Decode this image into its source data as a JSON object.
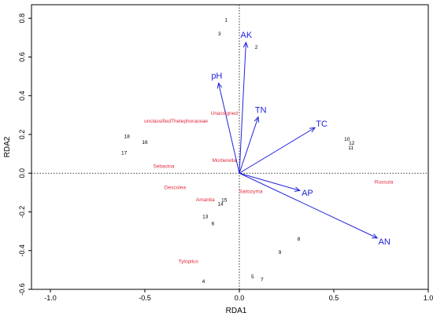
{
  "chart_data": {
    "type": "scatter",
    "title": "",
    "xlabel": "RDA1",
    "ylabel": "RDA2",
    "xlim": [
      -1.1,
      1.0
    ],
    "ylim": [
      -0.6,
      0.87
    ],
    "xticks": [
      -1.0,
      -0.5,
      0.0,
      0.5,
      1.0
    ],
    "yticks": [
      -0.6,
      -0.4,
      -0.2,
      0.0,
      0.2,
      0.4,
      0.6,
      0.8
    ],
    "xtick_labels": [
      "-1.0",
      "-0.5",
      "0.0",
      "0.5",
      "1.0"
    ],
    "ytick_labels": [
      "-0.6",
      "-0.4",
      "-0.2",
      "0.0",
      "0.2",
      "0.4",
      "0.6",
      "0.8"
    ],
    "grid": false,
    "zero_lines": "dotted",
    "colors": {
      "arrow": "#2222dd",
      "species": "#e0283c",
      "sites": "#000000"
    },
    "sites": [
      {
        "label": "1",
        "x": -0.07,
        "y": 0.79
      },
      {
        "label": "2",
        "x": 0.09,
        "y": 0.65
      },
      {
        "label": "3",
        "x": -0.105,
        "y": 0.72
      },
      {
        "label": "4",
        "x": -0.19,
        "y": -0.56
      },
      {
        "label": "5",
        "x": 0.07,
        "y": -0.535
      },
      {
        "label": "6",
        "x": -0.14,
        "y": -0.26
      },
      {
        "label": "7",
        "x": 0.12,
        "y": -0.55
      },
      {
        "label": "8",
        "x": 0.315,
        "y": -0.34
      },
      {
        "label": "9",
        "x": 0.215,
        "y": -0.41
      },
      {
        "label": "10",
        "x": 0.57,
        "y": 0.175
      },
      {
        "label": "11",
        "x": 0.59,
        "y": 0.13
      },
      {
        "label": "12",
        "x": 0.595,
        "y": 0.155
      },
      {
        "label": "13",
        "x": -0.18,
        "y": -0.225
      },
      {
        "label": "14",
        "x": -0.1,
        "y": -0.16
      },
      {
        "label": "15",
        "x": -0.08,
        "y": -0.14
      },
      {
        "label": "16",
        "x": -0.5,
        "y": 0.16
      },
      {
        "label": "17",
        "x": -0.61,
        "y": 0.105
      },
      {
        "label": "18",
        "x": -0.595,
        "y": 0.19
      }
    ],
    "species": [
      {
        "label": "Unassigned",
        "x": -0.08,
        "y": 0.31
      },
      {
        "label": "unclassifiedThelephoraceae",
        "x": -0.335,
        "y": 0.27
      },
      {
        "label": "Mortierella",
        "x": -0.08,
        "y": 0.065
      },
      {
        "label": "Sebacina",
        "x": -0.4,
        "y": 0.035
      },
      {
        "label": "Descolea",
        "x": -0.34,
        "y": -0.075
      },
      {
        "label": "Amanita",
        "x": -0.18,
        "y": -0.138
      },
      {
        "label": "Saitozyma",
        "x": 0.06,
        "y": -0.095
      },
      {
        "label": "Tylopilus",
        "x": -0.27,
        "y": -0.455
      },
      {
        "label": "Russula",
        "x": 0.765,
        "y": -0.045
      }
    ],
    "env_vectors": [
      {
        "label": "AK",
        "x": 0.035,
        "y": 0.675
      },
      {
        "label": "pH",
        "x": -0.11,
        "y": 0.465
      },
      {
        "label": "TN",
        "x": 0.1,
        "y": 0.29
      },
      {
        "label": "TC",
        "x": 0.4,
        "y": 0.235
      },
      {
        "label": "AP",
        "x": 0.32,
        "y": -0.09
      },
      {
        "label": "AN",
        "x": 0.73,
        "y": -0.335
      }
    ]
  }
}
